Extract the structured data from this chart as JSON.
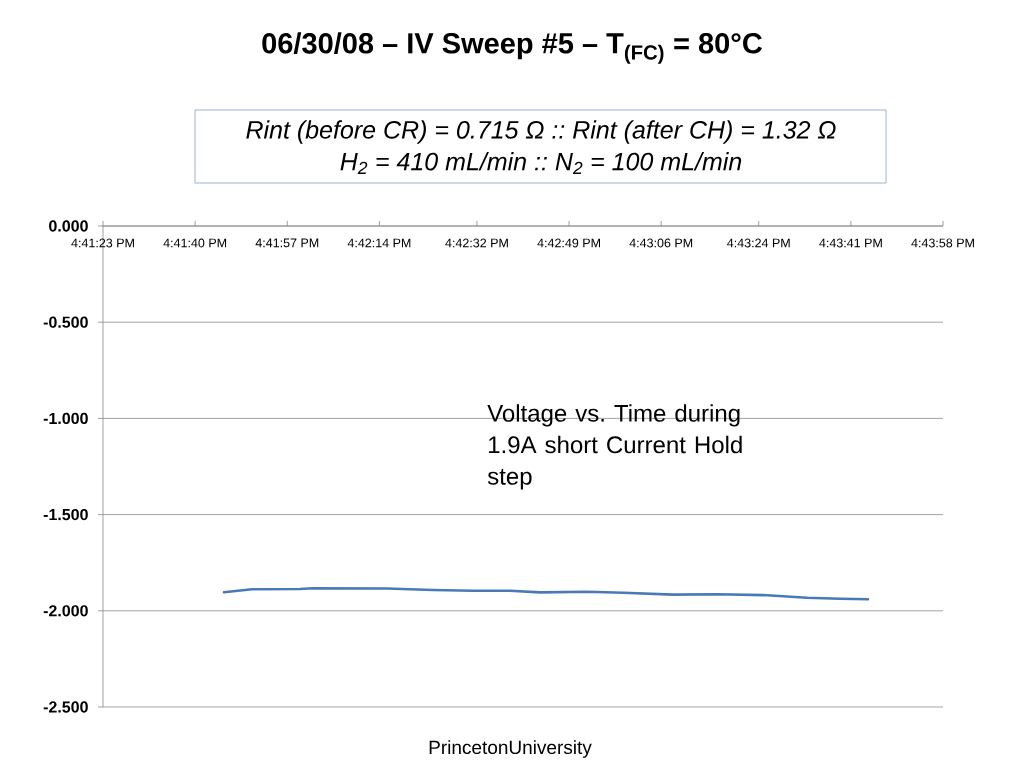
{
  "chart_data": {
    "type": "line",
    "title": "06/30/08 – IV Sweep #5 – T$_{(FC)}$ = 80°C",
    "annotations": [
      "Rint (before CR) = 0.715 Ω :: Rint (after CH) = 1.32 Ω",
      "H$_{2}$ = 410 mL/min :: N$_{2}$ = 100 mL/min",
      "Voltage vs. Time during 1.9A short Current Hold step",
      "PrincetonUniversity"
    ],
    "x": [
      16.695925,
      16.697358,
      16.699819,
      16.700486,
      16.704278,
      16.706636,
      16.708686,
      16.710583,
      16.712122,
      16.71453,
      16.716375,
      16.718939,
      16.721194,
      16.723755,
      16.725805,
      16.727497,
      16.728933
    ],
    "series": [
      {
        "color": "#4a7ab5",
        "values": [
          -1.904,
          -1.888,
          -1.887,
          -1.883,
          -1.884,
          -1.892,
          -1.896,
          -1.896,
          -1.904,
          -1.901,
          -1.906,
          -1.916,
          -1.914,
          -1.919,
          -1.932,
          -1.937,
          -1.94
        ]
      }
    ],
    "xlim": [
      16.689722,
      16.732778
    ],
    "xticks": [
      {
        "value": 16.689722,
        "label": "4:41:23 PM"
      },
      {
        "value": 16.694444,
        "label": "4:41:40 PM"
      },
      {
        "value": 16.699167,
        "label": "4:41:57 PM"
      },
      {
        "value": 16.703889,
        "label": "4:42:14 PM"
      },
      {
        "value": 16.708889,
        "label": "4:42:32 PM"
      },
      {
        "value": 16.713611,
        "label": "4:42:49 PM"
      },
      {
        "value": 16.718333,
        "label": "4:43:06 PM"
      },
      {
        "value": 16.723333,
        "label": "4:43:24 PM"
      },
      {
        "value": 16.728056,
        "label": "4:43:41 PM"
      },
      {
        "value": 16.732778,
        "label": "4:43:58 PM"
      }
    ],
    "ylim": [
      -2.5,
      0
    ],
    "yticks": [
      {
        "value": 0,
        "label": "0.000"
      },
      {
        "value": -0.5,
        "label": "-0.500"
      },
      {
        "value": -1,
        "label": "-1.000"
      },
      {
        "value": -1.5,
        "label": "-1.500"
      },
      {
        "value": -2,
        "label": "-2.000"
      },
      {
        "value": -2.5,
        "label": "-2.500"
      }
    ],
    "grid": "y",
    "line_style": "solid"
  }
}
